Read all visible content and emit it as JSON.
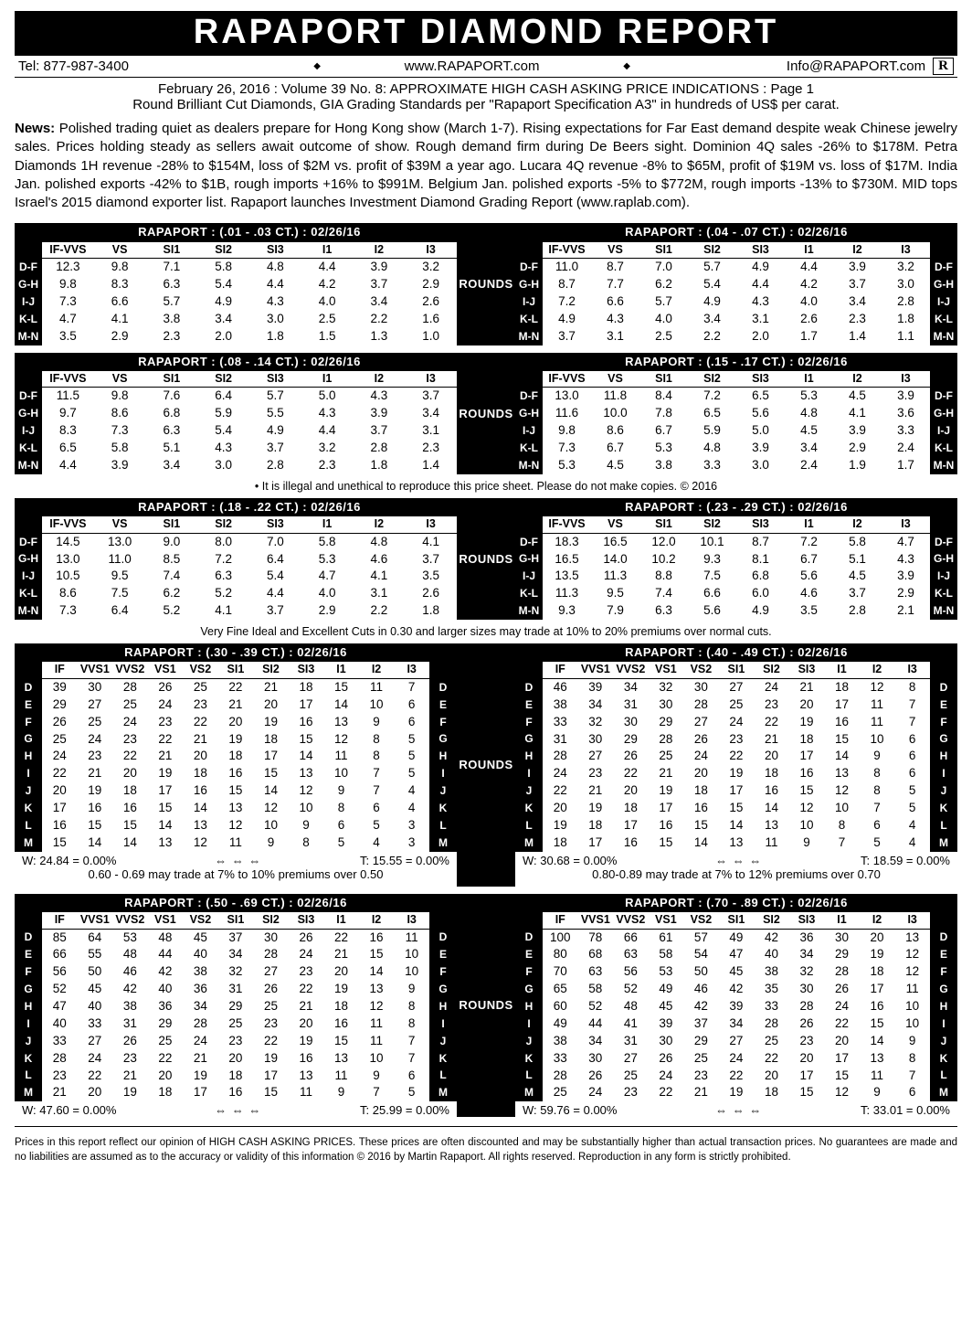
{
  "title": "RAPAPORT DIAMOND REPORT",
  "contact": {
    "tel": "Tel: 877-987-3400",
    "web": "www.RAPAPORT.com",
    "email": "Info@RAPAPORT.com",
    "mark": "R"
  },
  "subtitle1": "February 26, 2016 :  Volume 39  No. 8: APPROXIMATE HIGH CASH ASKING PRICE INDICATIONS : Page 1",
  "subtitle2": "Round Brilliant Cut Diamonds, GIA Grading Standards per \"Rapaport Specification A3\" in hundreds of US$ per carat.",
  "news_label": "News:",
  "news_body": "Polished trading quiet as dealers prepare for Hong Kong show (March 1-7). Rising expectations for Far East demand despite weak Chinese jewelry sales. Prices holding steady as sellers await outcome of show. Rough demand firm during De Beers sight. Dominion 4Q sales -26% to $178M. Petra Diamonds 1H revenue -28% to $154M, loss of $2M vs. profit of $39M a year ago. Lucara 4Q revenue -8% to $65M, profit of $19M vs. loss of $17M. India Jan. polished exports -42% to $1B, rough imports +16% to $991M. Belgium Jan. polished exports -5% to $772M, rough imports -13% to $730M. MID tops Israel's 2015 diamond exporter list. Rapaport launches Investment Diamond Grading Report (www.raplab.com).",
  "rounds_label": "ROUNDS",
  "copy_note": "• It is illegal and unethical to reproduce this price sheet. Please do not make copies. © 2016",
  "vfic_note": "Very Fine Ideal and Excellent Cuts in 0.30 and larger sizes may trade at 10% to 20% premiums over normal cuts.",
  "footer": "Prices in this report reflect our opinion of HIGH CASH ASKING PRICES. These prices are often discounted and may be substantially higher than actual transaction prices. No guarantees are made and no liabilities are assumed as to the accuracy or validity of this information © 2016 by Martin Rapaport. All rights reserved. Reproduction in any form is strictly prohibited.",
  "hdr8": [
    "IF-VVS",
    "VS",
    "SI1",
    "SI2",
    "SI3",
    "I1",
    "I2",
    "I3"
  ],
  "rows5": [
    "D-F",
    "G-H",
    "I-J",
    "K-L",
    "M-N"
  ],
  "hdr11": [
    "IF",
    "VVS1",
    "VVS2",
    "VS1",
    "VS2",
    "SI1",
    "SI2",
    "SI3",
    "I1",
    "I2",
    "I3"
  ],
  "rows10": [
    "D",
    "E",
    "F",
    "G",
    "H",
    "I",
    "J",
    "K",
    "L",
    "M"
  ],
  "pair1": {
    "left": {
      "title": "RAPAPORT : (.01 - .03 CT.) : 02/26/16",
      "rows": [
        [
          "12.3",
          "9.8",
          "7.1",
          "5.8",
          "4.8",
          "4.4",
          "3.9",
          "3.2"
        ],
        [
          "9.8",
          "8.3",
          "6.3",
          "5.4",
          "4.4",
          "4.2",
          "3.7",
          "2.9"
        ],
        [
          "7.3",
          "6.6",
          "5.7",
          "4.9",
          "4.3",
          "4.0",
          "3.4",
          "2.6"
        ],
        [
          "4.7",
          "4.1",
          "3.8",
          "3.4",
          "3.0",
          "2.5",
          "2.2",
          "1.6"
        ],
        [
          "3.5",
          "2.9",
          "2.3",
          "2.0",
          "1.8",
          "1.5",
          "1.3",
          "1.0"
        ]
      ]
    },
    "right": {
      "title": "RAPAPORT : (.04 - .07 CT.) : 02/26/16",
      "rows": [
        [
          "11.0",
          "8.7",
          "7.0",
          "5.7",
          "4.9",
          "4.4",
          "3.9",
          "3.2"
        ],
        [
          "8.7",
          "7.7",
          "6.2",
          "5.4",
          "4.4",
          "4.2",
          "3.7",
          "3.0"
        ],
        [
          "7.2",
          "6.6",
          "5.7",
          "4.9",
          "4.3",
          "4.0",
          "3.4",
          "2.8"
        ],
        [
          "4.9",
          "4.3",
          "4.0",
          "3.4",
          "3.1",
          "2.6",
          "2.3",
          "1.8"
        ],
        [
          "3.7",
          "3.1",
          "2.5",
          "2.2",
          "2.0",
          "1.7",
          "1.4",
          "1.1"
        ]
      ]
    }
  },
  "pair2": {
    "left": {
      "title": "RAPAPORT : (.08 - .14 CT.) : 02/26/16",
      "rows": [
        [
          "11.5",
          "9.8",
          "7.6",
          "6.4",
          "5.7",
          "5.0",
          "4.3",
          "3.7"
        ],
        [
          "9.7",
          "8.6",
          "6.8",
          "5.9",
          "5.5",
          "4.3",
          "3.9",
          "3.4"
        ],
        [
          "8.3",
          "7.3",
          "6.3",
          "5.4",
          "4.9",
          "4.4",
          "3.7",
          "3.1"
        ],
        [
          "6.5",
          "5.8",
          "5.1",
          "4.3",
          "3.7",
          "3.2",
          "2.8",
          "2.3"
        ],
        [
          "4.4",
          "3.9",
          "3.4",
          "3.0",
          "2.8",
          "2.3",
          "1.8",
          "1.4"
        ]
      ]
    },
    "right": {
      "title": "RAPAPORT : (.15 - .17 CT.) : 02/26/16",
      "rows": [
        [
          "13.0",
          "11.8",
          "8.4",
          "7.2",
          "6.5",
          "5.3",
          "4.5",
          "3.9"
        ],
        [
          "11.6",
          "10.0",
          "7.8",
          "6.5",
          "5.6",
          "4.8",
          "4.1",
          "3.6"
        ],
        [
          "9.8",
          "8.6",
          "6.7",
          "5.9",
          "5.0",
          "4.5",
          "3.9",
          "3.3"
        ],
        [
          "7.3",
          "6.7",
          "5.3",
          "4.8",
          "3.9",
          "3.4",
          "2.9",
          "2.4"
        ],
        [
          "5.3",
          "4.5",
          "3.8",
          "3.3",
          "3.0",
          "2.4",
          "1.9",
          "1.7"
        ]
      ]
    }
  },
  "pair3": {
    "left": {
      "title": "RAPAPORT : (.18 - .22 CT.) : 02/26/16",
      "rows": [
        [
          "14.5",
          "13.0",
          "9.0",
          "8.0",
          "7.0",
          "5.8",
          "4.8",
          "4.1"
        ],
        [
          "13.0",
          "11.0",
          "8.5",
          "7.2",
          "6.4",
          "5.3",
          "4.6",
          "3.7"
        ],
        [
          "10.5",
          "9.5",
          "7.4",
          "6.3",
          "5.4",
          "4.7",
          "4.1",
          "3.5"
        ],
        [
          "8.6",
          "7.5",
          "6.2",
          "5.2",
          "4.4",
          "4.0",
          "3.1",
          "2.6"
        ],
        [
          "7.3",
          "6.4",
          "5.2",
          "4.1",
          "3.7",
          "2.9",
          "2.2",
          "1.8"
        ]
      ]
    },
    "right": {
      "title": "RAPAPORT : (.23 - .29 CT.) : 02/26/16",
      "rows": [
        [
          "18.3",
          "16.5",
          "12.0",
          "10.1",
          "8.7",
          "7.2",
          "5.8",
          "4.7"
        ],
        [
          "16.5",
          "14.0",
          "10.2",
          "9.3",
          "8.1",
          "6.7",
          "5.1",
          "4.3"
        ],
        [
          "13.5",
          "11.3",
          "8.8",
          "7.5",
          "6.8",
          "5.6",
          "4.5",
          "3.9"
        ],
        [
          "11.3",
          "9.5",
          "7.4",
          "6.6",
          "6.0",
          "4.6",
          "3.7",
          "2.9"
        ],
        [
          "9.3",
          "7.9",
          "6.3",
          "5.6",
          "4.9",
          "3.5",
          "2.8",
          "2.1"
        ]
      ]
    }
  },
  "pair4": {
    "left": {
      "title": "RAPAPORT : (.30 - .39 CT.) : 02/26/16",
      "rows": [
        [
          "39",
          "30",
          "28",
          "26",
          "25",
          "22",
          "21",
          "18",
          "15",
          "11",
          "7"
        ],
        [
          "29",
          "27",
          "25",
          "24",
          "23",
          "21",
          "20",
          "17",
          "14",
          "10",
          "6"
        ],
        [
          "26",
          "25",
          "24",
          "23",
          "22",
          "20",
          "19",
          "16",
          "13",
          "9",
          "6"
        ],
        [
          "25",
          "24",
          "23",
          "22",
          "21",
          "19",
          "18",
          "15",
          "12",
          "8",
          "5"
        ],
        [
          "24",
          "23",
          "22",
          "21",
          "20",
          "18",
          "17",
          "14",
          "11",
          "8",
          "5"
        ],
        [
          "22",
          "21",
          "20",
          "19",
          "18",
          "16",
          "15",
          "13",
          "10",
          "7",
          "5"
        ],
        [
          "20",
          "19",
          "18",
          "17",
          "16",
          "15",
          "14",
          "12",
          "9",
          "7",
          "4"
        ],
        [
          "17",
          "16",
          "16",
          "15",
          "14",
          "13",
          "12",
          "10",
          "8",
          "6",
          "4"
        ],
        [
          "16",
          "15",
          "15",
          "14",
          "13",
          "12",
          "10",
          "9",
          "6",
          "5",
          "3"
        ],
        [
          "15",
          "14",
          "14",
          "13",
          "12",
          "11",
          "9",
          "8",
          "5",
          "4",
          "3"
        ]
      ],
      "stats": {
        "w": "W: 24.84 = 0.00%",
        "arrows": "⇔ ⇔ ⇔",
        "t": "T: 15.55 = 0.00%"
      },
      "prem": "0.60 - 0.69 may trade at 7% to 10% premiums over 0.50"
    },
    "right": {
      "title": "RAPAPORT : (.40 - .49 CT.) : 02/26/16",
      "rows": [
        [
          "46",
          "39",
          "34",
          "32",
          "30",
          "27",
          "24",
          "21",
          "18",
          "12",
          "8"
        ],
        [
          "38",
          "34",
          "31",
          "30",
          "28",
          "25",
          "23",
          "20",
          "17",
          "11",
          "7"
        ],
        [
          "33",
          "32",
          "30",
          "29",
          "27",
          "24",
          "22",
          "19",
          "16",
          "11",
          "7"
        ],
        [
          "31",
          "30",
          "29",
          "28",
          "26",
          "23",
          "21",
          "18",
          "15",
          "10",
          "6"
        ],
        [
          "28",
          "27",
          "26",
          "25",
          "24",
          "22",
          "20",
          "17",
          "14",
          "9",
          "6"
        ],
        [
          "24",
          "23",
          "22",
          "21",
          "20",
          "19",
          "18",
          "16",
          "13",
          "8",
          "6"
        ],
        [
          "22",
          "21",
          "20",
          "19",
          "18",
          "17",
          "16",
          "15",
          "12",
          "8",
          "5"
        ],
        [
          "20",
          "19",
          "18",
          "17",
          "16",
          "15",
          "14",
          "12",
          "10",
          "7",
          "5"
        ],
        [
          "19",
          "18",
          "17",
          "16",
          "15",
          "14",
          "13",
          "10",
          "8",
          "6",
          "4"
        ],
        [
          "18",
          "17",
          "16",
          "15",
          "14",
          "13",
          "11",
          "9",
          "7",
          "5",
          "4"
        ]
      ],
      "stats": {
        "w": "W: 30.68 = 0.00%",
        "arrows": "⇔ ⇔ ⇔",
        "t": "T: 18.59 = 0.00%"
      },
      "prem": "0.80-0.89 may trade at 7% to 12% premiums over 0.70"
    }
  },
  "pair5": {
    "left": {
      "title": "RAPAPORT : (.50 - .69 CT.) : 02/26/16",
      "rows": [
        [
          "85",
          "64",
          "53",
          "48",
          "45",
          "37",
          "30",
          "26",
          "22",
          "16",
          "11"
        ],
        [
          "66",
          "55",
          "48",
          "44",
          "40",
          "34",
          "28",
          "24",
          "21",
          "15",
          "10"
        ],
        [
          "56",
          "50",
          "46",
          "42",
          "38",
          "32",
          "27",
          "23",
          "20",
          "14",
          "10"
        ],
        [
          "52",
          "45",
          "42",
          "40",
          "36",
          "31",
          "26",
          "22",
          "19",
          "13",
          "9"
        ],
        [
          "47",
          "40",
          "38",
          "36",
          "34",
          "29",
          "25",
          "21",
          "18",
          "12",
          "8"
        ],
        [
          "40",
          "33",
          "31",
          "29",
          "28",
          "25",
          "23",
          "20",
          "16",
          "11",
          "8"
        ],
        [
          "33",
          "27",
          "26",
          "25",
          "24",
          "23",
          "22",
          "19",
          "15",
          "11",
          "7"
        ],
        [
          "28",
          "24",
          "23",
          "22",
          "21",
          "20",
          "19",
          "16",
          "13",
          "10",
          "7"
        ],
        [
          "23",
          "22",
          "21",
          "20",
          "19",
          "18",
          "17",
          "13",
          "11",
          "9",
          "6"
        ],
        [
          "21",
          "20",
          "19",
          "18",
          "17",
          "16",
          "15",
          "11",
          "9",
          "7",
          "5"
        ]
      ],
      "stats": {
        "w": "W: 47.60 = 0.00%",
        "arrows": "⇔ ⇔ ⇔",
        "t": "T: 25.99 = 0.00%"
      }
    },
    "right": {
      "title": "RAPAPORT : (.70 - .89 CT.) : 02/26/16",
      "rows": [
        [
          "100",
          "78",
          "66",
          "61",
          "57",
          "49",
          "42",
          "36",
          "30",
          "20",
          "13"
        ],
        [
          "80",
          "68",
          "63",
          "58",
          "54",
          "47",
          "40",
          "34",
          "29",
          "19",
          "12"
        ],
        [
          "70",
          "63",
          "56",
          "53",
          "50",
          "45",
          "38",
          "32",
          "28",
          "18",
          "12"
        ],
        [
          "65",
          "58",
          "52",
          "49",
          "46",
          "42",
          "35",
          "30",
          "26",
          "17",
          "11"
        ],
        [
          "60",
          "52",
          "48",
          "45",
          "42",
          "39",
          "33",
          "28",
          "24",
          "16",
          "10"
        ],
        [
          "49",
          "44",
          "41",
          "39",
          "37",
          "34",
          "28",
          "26",
          "22",
          "15",
          "10"
        ],
        [
          "38",
          "34",
          "31",
          "30",
          "29",
          "27",
          "25",
          "23",
          "20",
          "14",
          "9"
        ],
        [
          "33",
          "30",
          "27",
          "26",
          "25",
          "24",
          "22",
          "20",
          "17",
          "13",
          "8"
        ],
        [
          "28",
          "26",
          "25",
          "24",
          "23",
          "22",
          "20",
          "17",
          "15",
          "11",
          "7"
        ],
        [
          "25",
          "24",
          "23",
          "22",
          "21",
          "19",
          "18",
          "15",
          "12",
          "9",
          "6"
        ]
      ],
      "stats": {
        "w": "W: 59.76 = 0.00%",
        "arrows": "⇔ ⇔ ⇔",
        "t": "T: 33.01 = 0.00%"
      }
    }
  }
}
